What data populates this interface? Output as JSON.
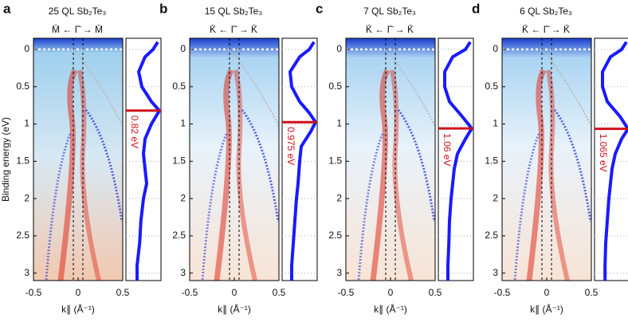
{
  "chart_data": [
    {
      "type": "arpes",
      "label": "a",
      "title": "25 QL Sb₂Te₃",
      "direction": "M̄ ← Γ̄ → M̄",
      "xlabel": "k∥ (Å⁻¹)",
      "ylabel": "Binding energy (eV)",
      "xlim": [
        -0.5,
        0.5
      ],
      "xticks": [
        -0.5,
        0,
        0.5
      ],
      "ylim": [
        -0.15,
        3.1
      ],
      "yticks": [
        0,
        0.5,
        1,
        1.5,
        2,
        2.5,
        3
      ],
      "edc": {
        "color": "#1a1aff",
        "energy": [
          -0.1,
          0,
          0.1,
          0.3,
          0.5,
          0.7,
          0.82,
          1.0,
          1.2,
          1.4,
          1.6,
          1.8,
          2.0,
          2.3,
          2.6,
          2.9,
          3.1
        ],
        "intensity": [
          0.95,
          0.8,
          0.55,
          0.35,
          0.45,
          0.75,
          1.0,
          0.75,
          0.55,
          0.5,
          0.55,
          0.6,
          0.5,
          0.42,
          0.38,
          0.3,
          0.3
        ]
      },
      "marker": {
        "value": 0.82,
        "label": "0.82 eV",
        "color": "#d0101a"
      }
    },
    {
      "type": "arpes",
      "label": "b",
      "title": "15 QL Sb₂Te₃",
      "direction": "K̄ ← Γ̄ → K̄",
      "xlabel": "k∥ (Å⁻¹)",
      "xlim": [
        -0.5,
        0.5
      ],
      "xticks": [
        -0.5,
        0,
        0.5
      ],
      "ylim": [
        -0.15,
        3.1
      ],
      "yticks": [
        0,
        0.5,
        1,
        1.5,
        2,
        2.5,
        3
      ],
      "edc": {
        "color": "#1a1aff",
        "energy": [
          -0.1,
          0,
          0.1,
          0.3,
          0.5,
          0.7,
          0.85,
          0.975,
          1.1,
          1.3,
          1.5,
          1.8,
          2.0,
          2.3,
          2.6,
          2.9,
          3.1
        ],
        "intensity": [
          0.95,
          0.8,
          0.5,
          0.2,
          0.25,
          0.5,
          0.8,
          1.0,
          0.85,
          0.55,
          0.5,
          0.45,
          0.4,
          0.35,
          0.3,
          0.25,
          0.25
        ]
      },
      "marker": {
        "value": 0.975,
        "label": "0.975 eV",
        "color": "#d0101a"
      }
    },
    {
      "type": "arpes",
      "label": "c",
      "title": "7 QL Sb₂Te₃",
      "direction": "K̄ ← Γ̄ → K̄",
      "xlabel": "k∥ (Å⁻¹)",
      "xlim": [
        -0.5,
        0.5
      ],
      "xticks": [
        -0.5,
        0,
        0.5
      ],
      "ylim": [
        -0.15,
        3.1
      ],
      "yticks": [
        0,
        0.5,
        1,
        1.5,
        2,
        2.5,
        3
      ],
      "edc": {
        "color": "#1a1aff",
        "energy": [
          -0.1,
          0,
          0.1,
          0.3,
          0.5,
          0.7,
          0.9,
          1.06,
          1.2,
          1.4,
          1.6,
          1.8,
          2.0,
          2.3,
          2.6,
          2.9,
          3.1
        ],
        "intensity": [
          0.95,
          0.8,
          0.4,
          0.15,
          0.15,
          0.3,
          0.7,
          1.0,
          0.8,
          0.55,
          0.45,
          0.4,
          0.35,
          0.3,
          0.28,
          0.25,
          0.25
        ]
      },
      "marker": {
        "value": 1.06,
        "label": "1.06 eV",
        "color": "#d0101a"
      }
    },
    {
      "type": "arpes",
      "label": "d",
      "title": "6 QL Sb₂Te₃",
      "direction": "K̄ ← Γ̄ → K̄",
      "xlabel": "k∥ (Å⁻¹)",
      "xlim": [
        -0.5,
        0.5
      ],
      "xticks": [
        -0.5,
        0,
        0.5
      ],
      "ylim": [
        -0.15,
        3.1
      ],
      "yticks": [
        0,
        0.5,
        1,
        1.5,
        2,
        2.5,
        3
      ],
      "edc": {
        "color": "#1a1aff",
        "energy": [
          -0.1,
          0,
          0.1,
          0.3,
          0.5,
          0.7,
          0.9,
          1.065,
          1.2,
          1.4,
          1.6,
          1.8,
          2.0,
          2.3,
          2.6,
          2.9,
          3.1
        ],
        "intensity": [
          0.95,
          0.8,
          0.45,
          0.2,
          0.2,
          0.35,
          0.75,
          1.0,
          0.8,
          0.6,
          0.5,
          0.45,
          0.4,
          0.35,
          0.3,
          0.28,
          0.28
        ]
      },
      "marker": {
        "value": 1.065,
        "label": "1.065 eV",
        "color": "#d0101a"
      }
    }
  ]
}
